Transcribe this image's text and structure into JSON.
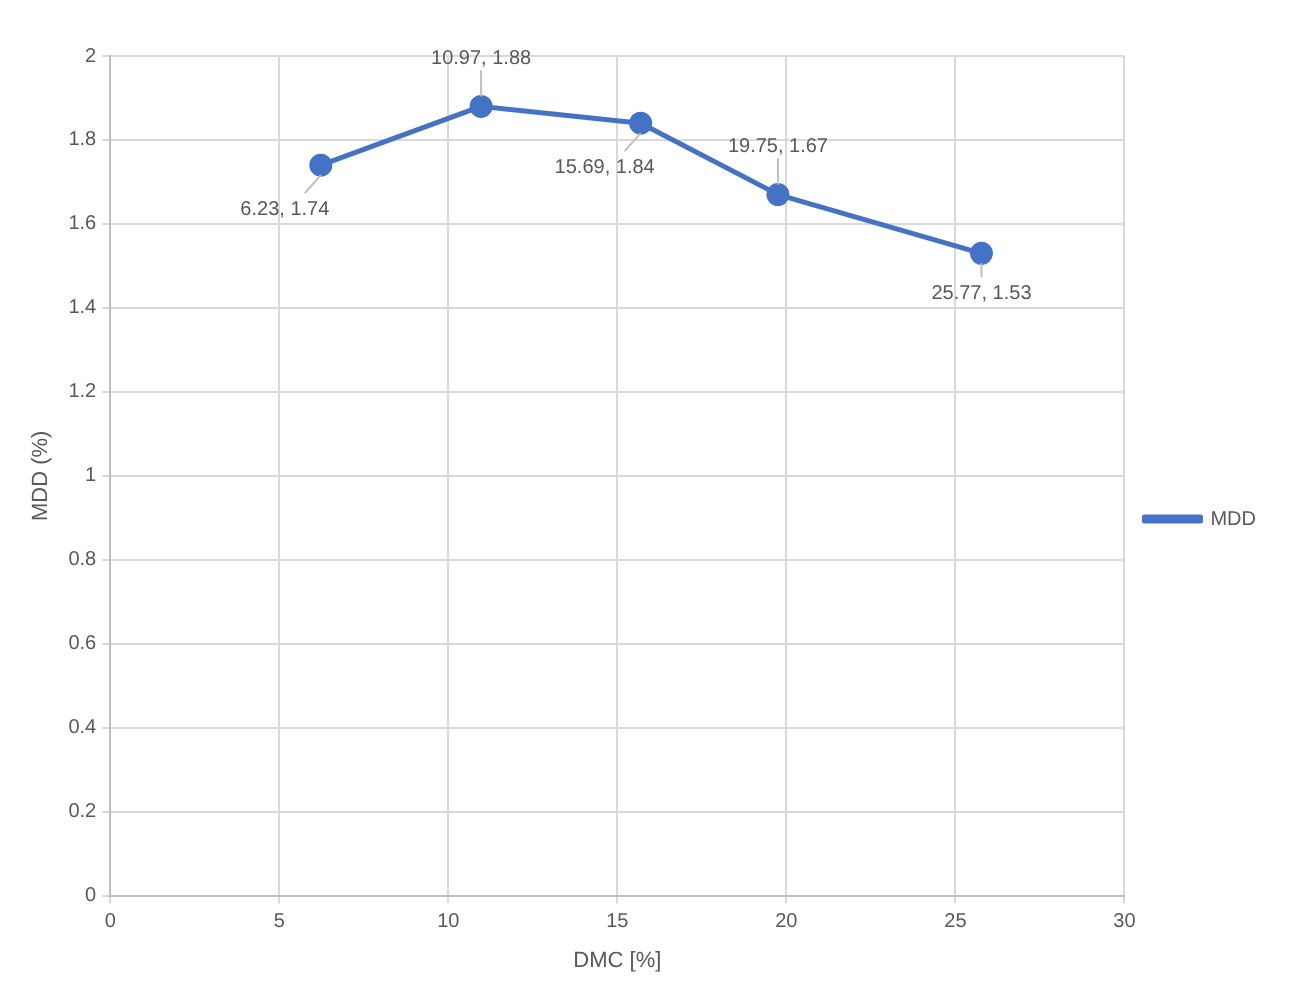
{
  "chart_data": {
    "type": "line",
    "xlabel": "DMC [%]",
    "ylabel": "MDD (%)",
    "x": [
      6.23,
      10.97,
      15.69,
      19.75,
      25.77
    ],
    "series": [
      {
        "name": "MDD",
        "color": "#4472c4",
        "values": [
          1.74,
          1.88,
          1.84,
          1.67,
          1.53
        ],
        "value_labels": [
          "6.23, 1.74",
          "10.97, 1.88",
          "15.69, 1.84",
          "19.75, 1.67",
          "25.77, 1.53"
        ]
      }
    ],
    "xlim": [
      0,
      30
    ],
    "xticks": [
      0,
      5,
      10,
      15,
      20,
      25,
      30
    ],
    "ylim": [
      0,
      2
    ],
    "yticks": [
      0,
      0.2,
      0.4,
      0.6,
      0.8,
      1,
      1.2,
      1.4,
      1.6,
      1.8,
      2
    ],
    "grid": true,
    "legend": "right",
    "marker": "circle",
    "line_style": "solid"
  }
}
